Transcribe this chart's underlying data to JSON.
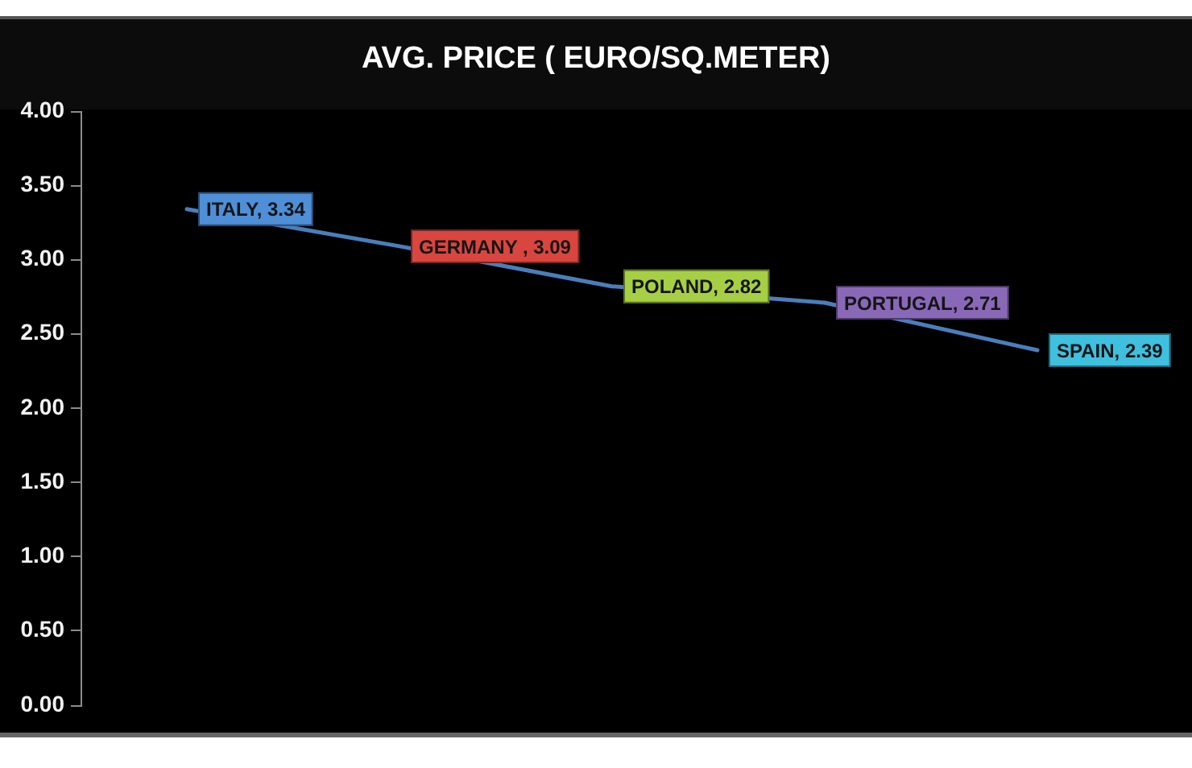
{
  "chart_data": {
    "type": "line",
    "title": "AVG. PRICE ( EURO/SQ.METER)",
    "categories": [
      null,
      null,
      null,
      null,
      null
    ],
    "values": [
      3.34,
      3.09,
      2.82,
      2.71,
      2.39
    ],
    "color": "#4a7ebb",
    "colors": [
      "#4f8fd8",
      "#d9463f",
      "#a6cf45",
      "#8a68b8",
      "#3fc0df"
    ],
    "value_labels": [
      "ITALY, 3.34",
      "GERMANY , 3.09",
      "POLAND, 2.82",
      "PORTUGAL, 2.71",
      "SPAIN, 2.39"
    ],
    "ylim": [
      0,
      4
    ],
    "yticks": [
      {
        "value": 0,
        "label": "0.00"
      },
      {
        "value": 0.5,
        "label": "0.50"
      },
      {
        "value": 1,
        "label": "1.00"
      },
      {
        "value": 1.5,
        "label": "1.50"
      },
      {
        "value": 2,
        "label": "2.00"
      },
      {
        "value": 2.5,
        "label": "2.50"
      },
      {
        "value": 3,
        "label": "3.00"
      },
      {
        "value": 3.5,
        "label": "3.50"
      },
      {
        "value": 4,
        "label": "4.00"
      }
    ],
    "tick_labels": "y",
    "marker": "none",
    "line_style": "solid"
  }
}
